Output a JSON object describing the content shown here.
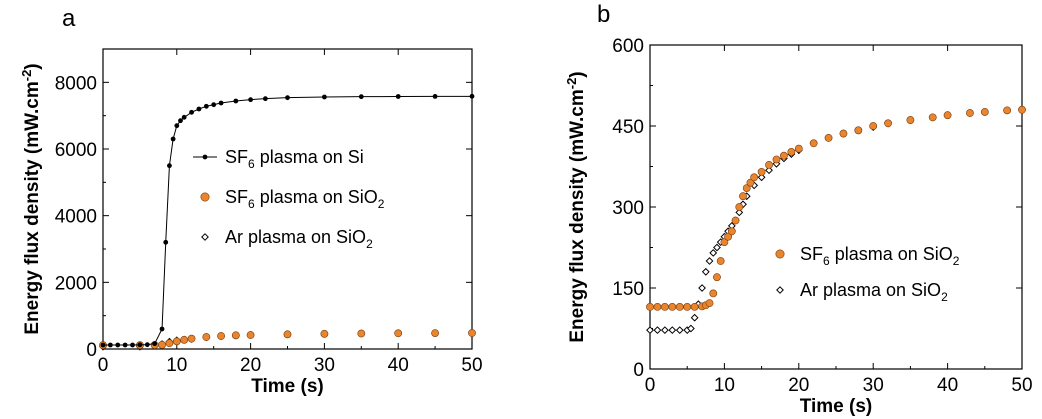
{
  "colors": {
    "sf6_sio2": "#e8852e",
    "axis": "#000000"
  },
  "chart_data": [
    {
      "panel": "a",
      "type": "line",
      "xlabel": "Time (s)",
      "ylabel": "Energy flux density (mW.cm",
      "ylabel_sup": "-2",
      "ylabel_close": ")",
      "xlim": [
        0,
        50
      ],
      "ylim": [
        0,
        9000
      ],
      "xticks": [
        "0",
        "10",
        "20",
        "30",
        "40",
        "50"
      ],
      "yticks": [
        "0",
        "2000",
        "4000",
        "6000",
        "8000"
      ],
      "legend_position": "center-right",
      "series": [
        {
          "name_main": "SF",
          "name_sub": "6",
          "name_rest": " plasma on Si",
          "marker": "filled-circle-line",
          "x": [
            0,
            1,
            2,
            3,
            4,
            5,
            6,
            7,
            8,
            8.5,
            9,
            9.5,
            10,
            10.5,
            11,
            12,
            13,
            14,
            15,
            16,
            18,
            20,
            22,
            25,
            30,
            35,
            40,
            45,
            50
          ],
          "y": [
            120,
            120,
            120,
            120,
            120,
            125,
            130,
            160,
            600,
            3200,
            5500,
            6300,
            6700,
            6850,
            6950,
            7100,
            7200,
            7280,
            7330,
            7380,
            7440,
            7480,
            7510,
            7540,
            7560,
            7570,
            7575,
            7578,
            7580
          ]
        },
        {
          "name_main": "SF",
          "name_sub": "6",
          "name_rest": " plasma on SiO",
          "name_sub2": "2",
          "marker": "filled-circle-orange",
          "x": [
            0,
            5,
            7,
            8,
            9,
            10,
            11,
            12,
            14,
            16,
            18,
            20,
            25,
            30,
            35,
            40,
            45,
            50
          ],
          "y": [
            115,
            115,
            118,
            125,
            175,
            230,
            275,
            310,
            360,
            390,
            410,
            420,
            440,
            455,
            465,
            472,
            477,
            480
          ]
        },
        {
          "name_main": "Ar plasma on SiO",
          "name_sub": "2",
          "marker": "open-diamond",
          "x": [
            0,
            5,
            7,
            8,
            9,
            10,
            11,
            12,
            14,
            16,
            18,
            20,
            25,
            30,
            35,
            40,
            45,
            50
          ],
          "y": [
            70,
            70,
            110,
            150,
            220,
            260,
            280,
            300,
            350,
            385,
            405,
            418,
            440,
            455,
            465,
            472,
            477,
            480
          ]
        }
      ]
    },
    {
      "panel": "b",
      "type": "scatter",
      "xlabel": "Time (s)",
      "ylabel": "Energy flux density (mW.cm",
      "ylabel_sup": "-2",
      "ylabel_close": ")",
      "xlim": [
        0,
        50
      ],
      "ylim": [
        0,
        600
      ],
      "xticks": [
        "0",
        "10",
        "20",
        "30",
        "40",
        "50"
      ],
      "yticks": [
        "0",
        "150",
        "300",
        "450",
        "600"
      ],
      "legend_position": "center-right",
      "series": [
        {
          "name_main": "SF",
          "name_sub": "6",
          "name_rest": " plasma on SiO",
          "name_sub2": "2",
          "marker": "filled-circle-orange",
          "x": [
            0,
            1,
            2,
            3,
            4,
            5,
            6,
            7,
            7.5,
            8,
            8.5,
            9,
            9.5,
            10,
            10.5,
            11,
            11.5,
            12,
            12.5,
            13,
            13.5,
            14,
            15,
            16,
            17,
            18,
            19,
            20,
            22,
            24,
            26,
            28,
            30,
            32,
            35,
            38,
            40,
            43,
            45,
            48,
            50
          ],
          "y": [
            115,
            115,
            115,
            115,
            115,
            115,
            115,
            116,
            118,
            122,
            140,
            170,
            200,
            235,
            245,
            255,
            275,
            300,
            320,
            335,
            345,
            355,
            365,
            378,
            388,
            395,
            402,
            408,
            418,
            428,
            436,
            442,
            450,
            455,
            461,
            466,
            470,
            474,
            476,
            479,
            480
          ]
        },
        {
          "name_main": "Ar plasma on SiO",
          "name_sub": "2",
          "marker": "open-diamond",
          "x": [
            0,
            1,
            2,
            3,
            4,
            5,
            5.5,
            6,
            6.5,
            7,
            7.5,
            8,
            8.5,
            9,
            9.5,
            10,
            10.5,
            11,
            11.5,
            12,
            12.5,
            13,
            14,
            15,
            16,
            17,
            18,
            19,
            20,
            22,
            24,
            26,
            28,
            30,
            32,
            35,
            38,
            40,
            43,
            45,
            48,
            50
          ],
          "y": [
            72,
            72,
            72,
            72,
            72,
            72,
            75,
            95,
            120,
            150,
            180,
            200,
            215,
            225,
            235,
            245,
            255,
            265,
            275,
            290,
            305,
            320,
            340,
            355,
            368,
            380,
            390,
            398,
            405,
            418,
            428,
            436,
            442,
            448,
            455,
            461,
            466,
            470,
            474,
            476,
            479,
            481
          ]
        }
      ]
    }
  ]
}
